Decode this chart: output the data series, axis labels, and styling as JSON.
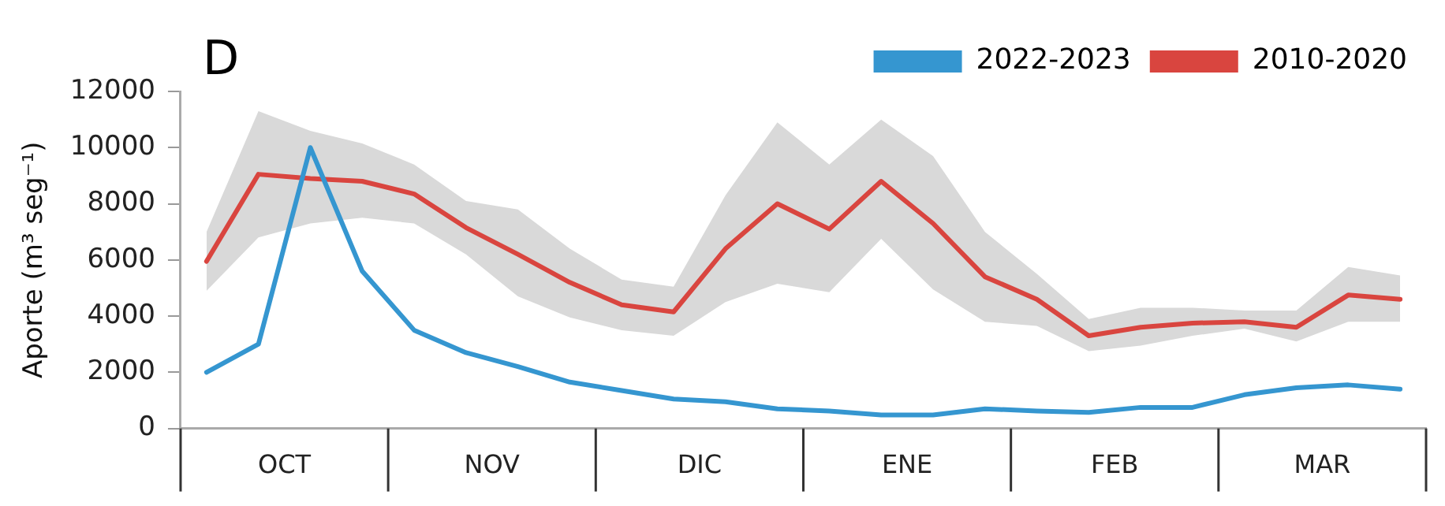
{
  "chart_data": {
    "type": "line",
    "title": "D",
    "ylabel": "Aporte (m³ seg⁻¹)",
    "categories": [
      null,
      null,
      null,
      null,
      null,
      null,
      null,
      null,
      null,
      null,
      null,
      null,
      null,
      null,
      null,
      null,
      null,
      null,
      null,
      null,
      null,
      null,
      null,
      null
    ],
    "annotations": [
      "OCT",
      "NOV",
      "DIC",
      "ENE",
      "FEB",
      "MAR"
    ],
    "ylim": [
      0,
      12000
    ],
    "yticks": [
      0,
      2000,
      4000,
      6000,
      8000,
      10000,
      12000
    ],
    "series": [
      {
        "name": "2022-2023",
        "color": "#3596d0",
        "values": [
          2000,
          3000,
          10000,
          5600,
          3500,
          2700,
          2200,
          1650,
          1350,
          1050,
          950,
          700,
          620,
          480,
          480,
          700,
          620,
          570,
          750,
          750,
          1200,
          1450,
          1550,
          1400
        ]
      },
      {
        "name": "2010-2020",
        "color": "#d9453f",
        "values": [
          5950,
          9050,
          8900,
          8800,
          8350,
          7150,
          6200,
          5200,
          4400,
          4150,
          6400,
          8000,
          7100,
          8800,
          7300,
          5400,
          4600,
          3300,
          3600,
          3750,
          3800,
          3600,
          4750,
          4600
        ],
        "lower": [
          4900,
          6800,
          7300,
          7500,
          7300,
          6200,
          4700,
          3950,
          3500,
          3300,
          4500,
          5150,
          4850,
          6750,
          4950,
          3800,
          3650,
          2750,
          2950,
          3300,
          3550,
          3100,
          3800,
          3800
        ],
        "upper": [
          7000,
          11300,
          10600,
          10150,
          9400,
          8100,
          7800,
          6400,
          5300,
          5050,
          8300,
          10900,
          9400,
          11000,
          9700,
          7000,
          5500,
          3900,
          4300,
          4300,
          4200,
          4200,
          5750,
          5450
        ]
      }
    ],
    "grid": false,
    "legend": "top right",
    "marker": "none",
    "line_style": "solid"
  }
}
